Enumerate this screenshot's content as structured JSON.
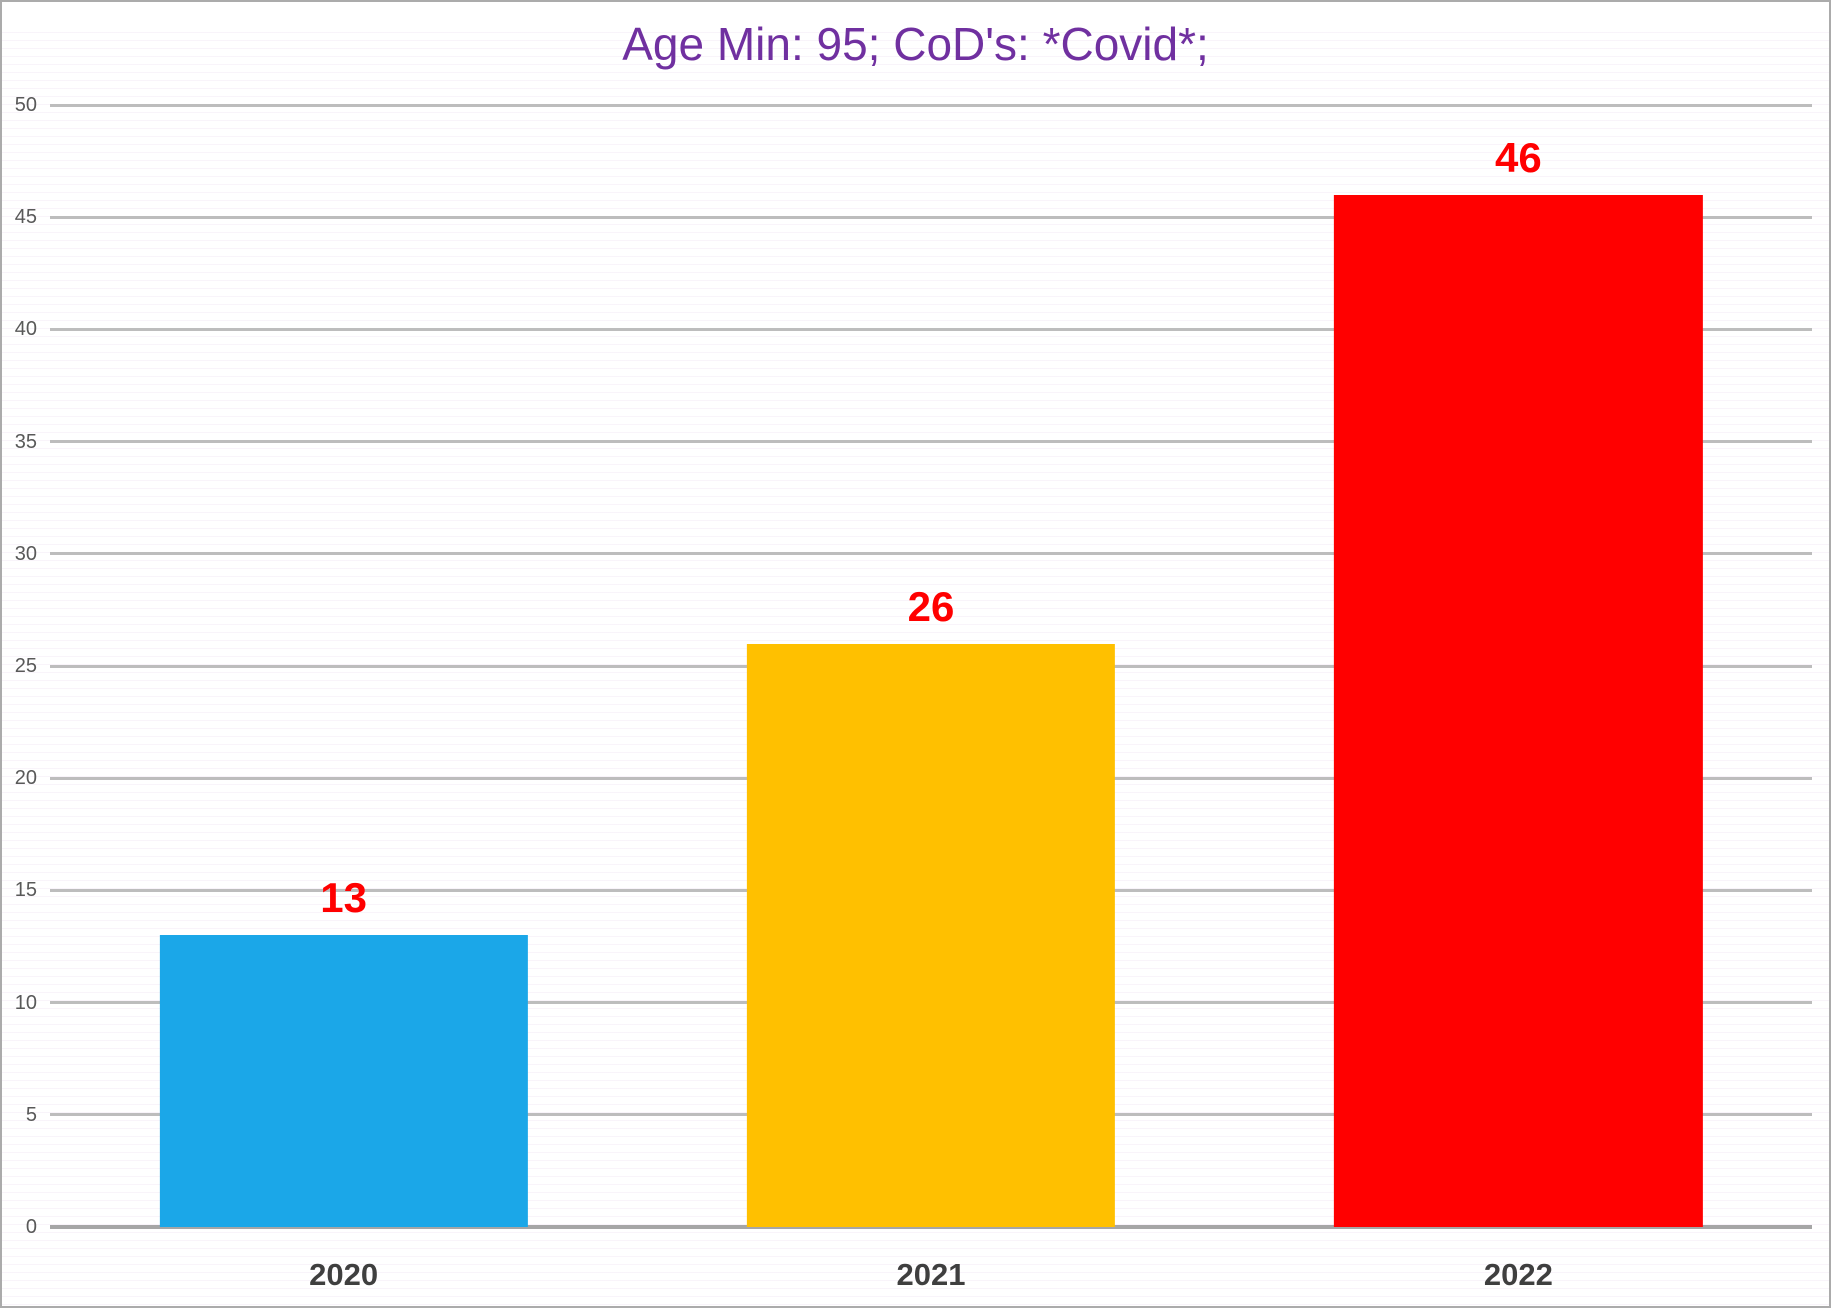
{
  "chart_data": {
    "type": "bar",
    "title": "Age Min: 95; CoD's: *Covid*;",
    "title_color": "#7030a0",
    "categories": [
      "2020",
      "2021",
      "2022"
    ],
    "values": [
      13,
      26,
      46
    ],
    "bar_colors": [
      "#1ba7e8",
      "#ffc000",
      "#ff0000"
    ],
    "data_labels": [
      "13",
      "26",
      "46"
    ],
    "data_label_color": "#ff0000",
    "xlabel": "",
    "ylabel": "",
    "ylim": [
      0,
      50
    ],
    "ytick_step": 5,
    "ytick_labels": [
      "0",
      "5",
      "10",
      "15",
      "20",
      "25",
      "30",
      "35",
      "40",
      "45",
      "50"
    ],
    "ytick_color": "#595959",
    "xtick_color": "#3f3f3f",
    "grid": true,
    "gridline_color": "#bdbdbd",
    "axis_line_color": "#a6a6a6",
    "legend": "none",
    "background_color": "#ffffff"
  }
}
